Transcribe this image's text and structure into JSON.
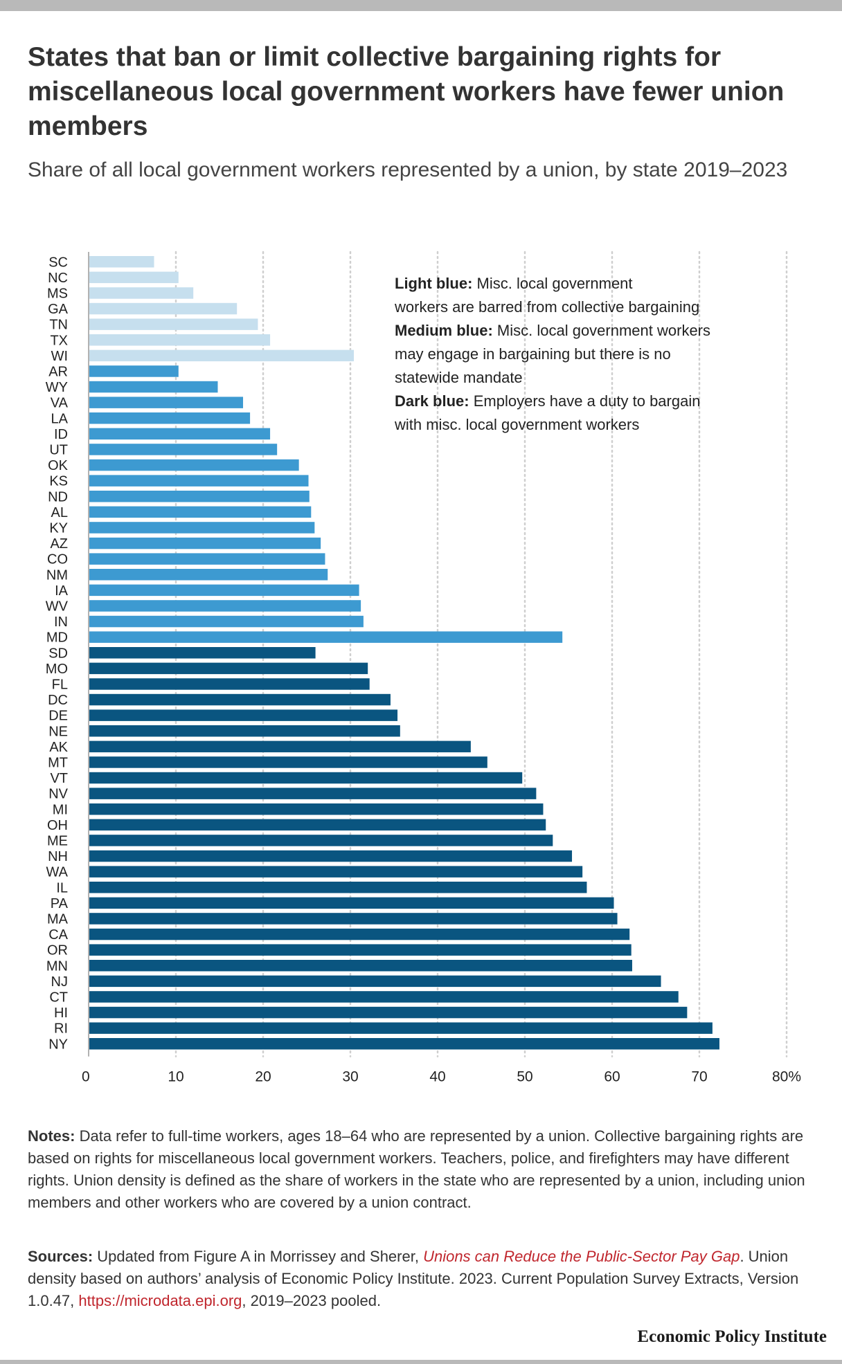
{
  "title": "States that ban or limit collective bargaining rights for miscellaneous local government workers have fewer union members",
  "subtitle": "Share of all local government workers represented by a union, by state 2019–2023",
  "legend": {
    "light_label": "Light blue:",
    "light_text_1": "Misc. local government",
    "light_text_2": "workers are barred from collective bargaining",
    "medium_label": "Medium blue:",
    "medium_text_1": "Misc. local government workers",
    "medium_text_2": "may engage in bargaining but there is no",
    "medium_text_3": "statewide mandate",
    "dark_label": "Dark blue:",
    "dark_text_1": "Employers have a duty to bargain",
    "dark_text_2": "with misc. local government workers"
  },
  "colors": {
    "light": "#c6dfee",
    "medium": "#3d9ad1",
    "dark": "#0a5580",
    "grid": "#cfcfcf",
    "axis": "#999999"
  },
  "chart_data": {
    "type": "bar",
    "orientation": "horizontal",
    "xlim": [
      0,
      80
    ],
    "xticks": [
      0,
      10,
      20,
      30,
      40,
      50,
      60,
      70,
      80
    ],
    "xtick_labels": [
      "0",
      "10",
      "20",
      "30",
      "40",
      "50",
      "60",
      "70",
      "80%"
    ],
    "grid": true,
    "legend_position": "top-right",
    "categories": [
      "SC",
      "NC",
      "MS",
      "GA",
      "TN",
      "TX",
      "WI",
      "AR",
      "WY",
      "VA",
      "LA",
      "ID",
      "UT",
      "OK",
      "KS",
      "ND",
      "AL",
      "KY",
      "AZ",
      "CO",
      "NM",
      "IA",
      "WV",
      "IN",
      "MD",
      "SD",
      "MO",
      "FL",
      "DC",
      "DE",
      "NE",
      "AK",
      "MT",
      "VT",
      "NV",
      "MI",
      "OH",
      "ME",
      "NH",
      "WA",
      "IL",
      "PA",
      "MA",
      "CA",
      "OR",
      "MN",
      "NJ",
      "CT",
      "HI",
      "RI",
      "NY"
    ],
    "values": [
      7.5,
      10.3,
      12.0,
      17.0,
      19.4,
      20.8,
      30.4,
      10.3,
      14.8,
      17.7,
      18.5,
      20.8,
      21.6,
      24.1,
      25.2,
      25.3,
      25.5,
      25.9,
      26.6,
      27.1,
      27.4,
      31.0,
      31.2,
      31.5,
      54.3,
      26.0,
      32.0,
      32.2,
      34.6,
      35.4,
      35.7,
      43.8,
      45.7,
      49.7,
      51.3,
      52.1,
      52.4,
      53.2,
      55.4,
      56.6,
      57.1,
      60.2,
      60.6,
      62.0,
      62.2,
      62.3,
      65.6,
      67.6,
      68.6,
      71.5,
      72.3
    ],
    "groups": [
      "light",
      "light",
      "light",
      "light",
      "light",
      "light",
      "light",
      "medium",
      "medium",
      "medium",
      "medium",
      "medium",
      "medium",
      "medium",
      "medium",
      "medium",
      "medium",
      "medium",
      "medium",
      "medium",
      "medium",
      "medium",
      "medium",
      "medium",
      "medium",
      "dark",
      "dark",
      "dark",
      "dark",
      "dark",
      "dark",
      "dark",
      "dark",
      "dark",
      "dark",
      "dark",
      "dark",
      "dark",
      "dark",
      "dark",
      "dark",
      "dark",
      "dark",
      "dark",
      "dark",
      "dark",
      "dark",
      "dark",
      "dark",
      "dark",
      "dark"
    ]
  },
  "notes": {
    "label": "Notes:",
    "text": "Data refer to full-time workers, ages 18–64 who are represented by a union. Collective bargaining rights are based on rights for miscellaneous local government workers. Teachers, police, and firefighters may have different rights. Union density is defined as the share of workers in the state who are represented by a union, including union members and other workers who are covered by a union contract."
  },
  "sources": {
    "label": "Sources:",
    "text_1": "Updated from Figure A in Morrissey and Sherer,",
    "link_text": "Unions can Reduce the Public-Sector Pay Gap",
    "text_2": ". Union density based on authors’ analysis of Economic Policy Institute. 2023. Current Population Survey Extracts, Version 1.0.47,",
    "url": "https://microdata.epi.org",
    "text_3": ", 2019–2023 pooled."
  },
  "brand": "Economic Policy Institute"
}
